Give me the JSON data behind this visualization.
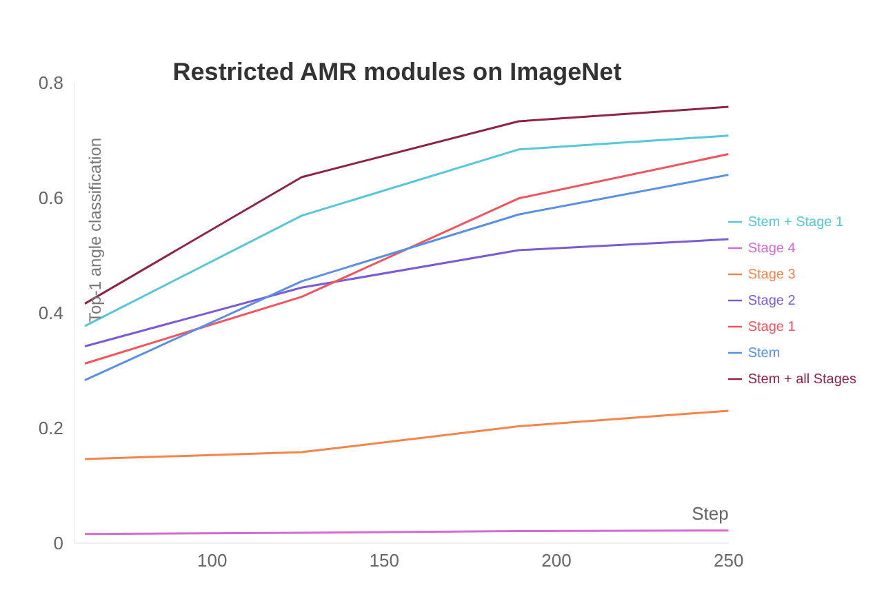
{
  "chart_data": {
    "type": "line",
    "title": "Restricted AMR modules on ImageNet",
    "xlabel": "Step",
    "ylabel": "Top-1 angle classification",
    "x": [
      63,
      126,
      189,
      250
    ],
    "xlim": [
      60,
      250
    ],
    "xticks": [
      100,
      150,
      200,
      250
    ],
    "ylim": [
      0,
      0.8
    ],
    "yticks": [
      0,
      0.2,
      0.4,
      0.6,
      0.8
    ],
    "grid": false,
    "legend": "right",
    "marker": "none",
    "line_style": "solid",
    "series": [
      {
        "name": "Stem + Stage 1",
        "color": "#55c7d8",
        "values": [
          0.377,
          0.569,
          0.684,
          0.708
        ]
      },
      {
        "name": "Stage 4",
        "color": "#d36bd3",
        "values": [
          0.016,
          0.018,
          0.021,
          0.022
        ]
      },
      {
        "name": "Stage 3",
        "color": "#f4854a",
        "values": [
          0.146,
          0.158,
          0.203,
          0.23
        ]
      },
      {
        "name": "Stage 2",
        "color": "#7b5ad6",
        "values": [
          0.342,
          0.444,
          0.509,
          0.528
        ]
      },
      {
        "name": "Stage 1",
        "color": "#f0555e",
        "values": [
          0.312,
          0.428,
          0.599,
          0.676
        ]
      },
      {
        "name": "Stem",
        "color": "#5a8fe6",
        "values": [
          0.283,
          0.455,
          0.571,
          0.64
        ]
      },
      {
        "name": "Stem + all Stages",
        "color": "#8e2348",
        "values": [
          0.416,
          0.636,
          0.733,
          0.758
        ]
      }
    ]
  }
}
